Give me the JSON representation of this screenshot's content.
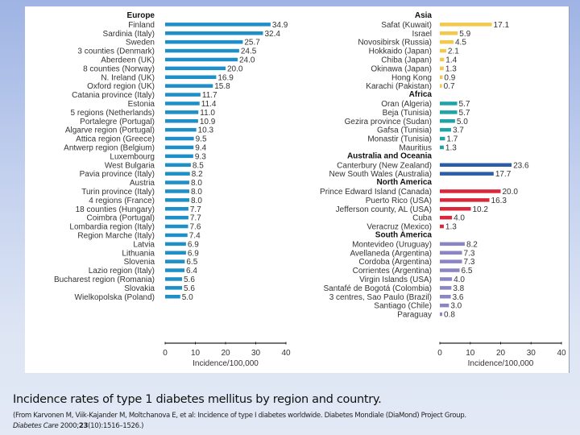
{
  "chart_data": {
    "type": "bar",
    "orientation": "horizontal",
    "title": "Incidence rates of type 1 diabetes mellitus by region and country.",
    "xlabel": "Incidence/100,000",
    "xlim": [
      0,
      40
    ],
    "xticks": [
      0,
      10,
      20,
      30,
      40
    ],
    "panels": [
      {
        "name": "left",
        "groups": [
          {
            "name": "Europe",
            "color": "#1f8fc8",
            "categories": [
              "Finland",
              "Sardinia (Italy)",
              "Sweden",
              "3 counties (Denmark)",
              "Aberdeen (UK)",
              "8 counties (Norway)",
              "N. Ireland (UK)",
              "Oxford region (UK)",
              "Catania province (Italy)",
              "Estonia",
              "5 regions (Netherlands)",
              "Portalegre (Portugal)",
              "Algarve region (Portugal)",
              "Attica region (Greece)",
              "Antwerp region (Belgium)",
              "Luxembourg",
              "West Bulgaria",
              "Pavia province (Italy)",
              "Austria",
              "Turin province (Italy)",
              "4 regions (France)",
              "18 counties (Hungary)",
              "Coimbra (Portugal)",
              "Lombardia region (Italy)",
              "Region Marche (Italy)",
              "Latvia",
              "Lithuania",
              "Slovenia",
              "Lazio region (Italy)",
              "Bucharest region (Romania)",
              "Slovakia",
              "Wielkopolska (Poland)"
            ],
            "values": [
              34.9,
              32.4,
              25.7,
              24.5,
              24.0,
              20.0,
              16.9,
              15.8,
              11.7,
              11.4,
              11.0,
              10.9,
              10.3,
              9.5,
              9.4,
              9.3,
              8.5,
              8.2,
              8.0,
              8.0,
              8.0,
              7.7,
              7.7,
              7.6,
              7.4,
              6.9,
              6.9,
              6.5,
              6.4,
              5.6,
              5.6,
              5.0
            ]
          }
        ]
      },
      {
        "name": "right",
        "groups": [
          {
            "name": "Asia",
            "color": "#f2c94c",
            "categories": [
              "Safat (Kuwait)",
              "Israel",
              "Novosibirsk (Russia)",
              "Hokkaido (Japan)",
              "Chiba (Japan)",
              "Okinawa (Japan)",
              "Hong Kong",
              "Karachi (Pakistan)"
            ],
            "values": [
              17.1,
              5.9,
              4.5,
              2.1,
              1.4,
              1.3,
              0.9,
              0.7
            ]
          },
          {
            "name": "Africa",
            "color": "#1fa3a8",
            "categories": [
              "Oran (Algeria)",
              "Beja (Tunisia)",
              "Gezira province (Sudan)",
              "Gafsa (Tunisia)",
              "Monastir (Tunisia)",
              "Mauritius"
            ],
            "values": [
              5.7,
              5.7,
              5.0,
              3.7,
              1.7,
              1.3
            ]
          },
          {
            "name": "Australia and Oceania",
            "color": "#2a5ea8",
            "categories": [
              "Canterbury (New Zealand)",
              "New South Wales (Australia)"
            ],
            "values": [
              23.6,
              17.7
            ]
          },
          {
            "name": "North America",
            "color": "#d9283c",
            "categories": [
              "Prince Edward Island (Canada)",
              "Puerto Rico (USA)",
              "Jefferson county, AL (USA)",
              "Cuba",
              "Veracruz (Mexico)"
            ],
            "values": [
              20.0,
              16.3,
              10.2,
              4.0,
              1.3
            ]
          },
          {
            "name": "South America",
            "color": "#8a86c4",
            "categories": [
              "Montevideo (Uruguay)",
              "Avellaneda (Argentina)",
              "Cordoba (Argentina)",
              "Corrientes (Argentina)",
              "Virgin Islands (USA)",
              "Santafé de Bogotá (Colombia)",
              "3 centres, Sao Paulo (Brazil)",
              "Santiago (Chile)",
              "Paraguay"
            ],
            "values": [
              8.2,
              7.3,
              7.3,
              6.5,
              4.0,
              3.8,
              3.6,
              3.0,
              0.8
            ]
          }
        ]
      }
    ]
  },
  "caption": {
    "title": "Incidence rates of type 1 diabetes mellitus by region and country.",
    "source_prefix": "(From Karvonen M, Viik-Kajander M, Moltchanova E, et al: Incidence of type I diabetes worldwide. Diabetes Mondiale (DiaMond) Project Group.",
    "journal": "Diabetes Care",
    "year": " 2000;",
    "volume": "23",
    "pages": "(10):1516–1526.)"
  }
}
